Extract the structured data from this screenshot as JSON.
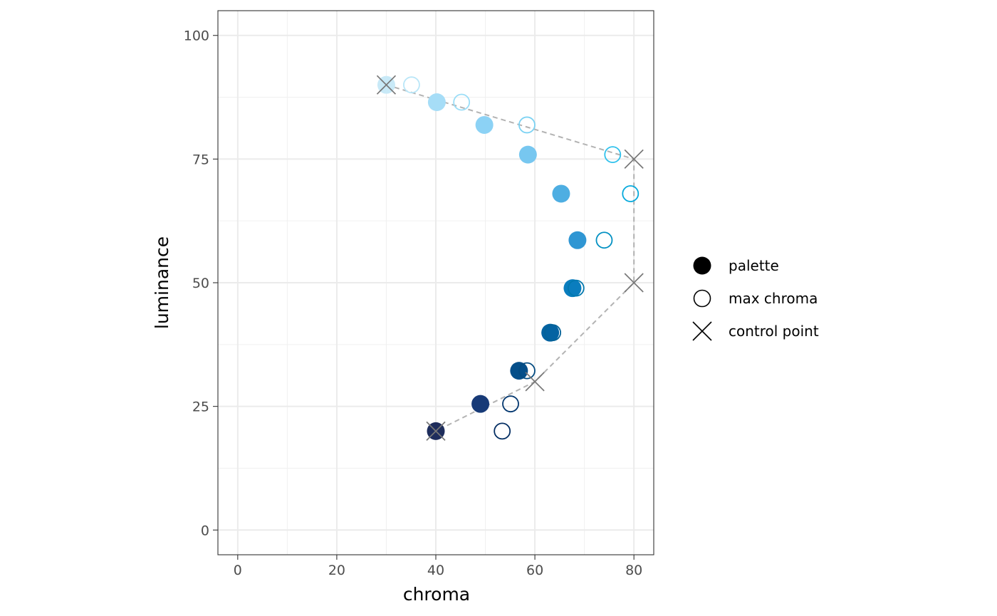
{
  "chart_data": {
    "type": "scatter",
    "xlabel": "chroma",
    "ylabel": "luminance",
    "xlim": [
      -4,
      84
    ],
    "ylim": [
      -5,
      105
    ],
    "x_ticks": [
      0,
      20,
      40,
      60,
      80
    ],
    "y_ticks": [
      0,
      25,
      50,
      75,
      100
    ],
    "x_tick_labels": [
      "0",
      "20",
      "40",
      "60",
      "80"
    ],
    "y_tick_labels": [
      "0",
      "25",
      "50",
      "75",
      "100"
    ],
    "grid": true,
    "legend_position": "right",
    "legend": [
      {
        "label": "palette",
        "shape": "filled-circle"
      },
      {
        "label": "max chroma",
        "shape": "open-circle"
      },
      {
        "label": "control point",
        "shape": "cross"
      }
    ],
    "series": [
      {
        "name": "palette",
        "points": [
          {
            "x": 30.0,
            "y": 90.0,
            "color": "#C8E9F7"
          },
          {
            "x": 40.2,
            "y": 86.5,
            "color": "#A6DDF7"
          },
          {
            "x": 49.8,
            "y": 81.9,
            "color": "#8CD2F5"
          },
          {
            "x": 58.6,
            "y": 75.9,
            "color": "#77C7F0"
          },
          {
            "x": 65.3,
            "y": 68.0,
            "color": "#4EAEE2"
          },
          {
            "x": 68.6,
            "y": 58.6,
            "color": "#2F96D3"
          },
          {
            "x": 67.6,
            "y": 48.9,
            "color": "#0A7DBE"
          },
          {
            "x": 63.1,
            "y": 39.9,
            "color": "#0463A2"
          },
          {
            "x": 56.8,
            "y": 32.2,
            "color": "#044E89"
          },
          {
            "x": 49.0,
            "y": 25.5,
            "color": "#173A77"
          },
          {
            "x": 40.0,
            "y": 20.0,
            "color": "#1E2D5C"
          }
        ]
      },
      {
        "name": "max chroma",
        "points": [
          {
            "x": 35.1,
            "y": 90.0,
            "color": "#B9E6F8"
          },
          {
            "x": 45.2,
            "y": 86.5,
            "color": "#9ADDF7"
          },
          {
            "x": 58.4,
            "y": 81.9,
            "color": "#7BD2F3"
          },
          {
            "x": 75.7,
            "y": 75.9,
            "color": "#2FC1EC"
          },
          {
            "x": 79.3,
            "y": 68.0,
            "color": "#05A9DC"
          },
          {
            "x": 74.0,
            "y": 58.6,
            "color": "#0190C2"
          },
          {
            "x": 68.3,
            "y": 48.9,
            "color": "#0178AE"
          },
          {
            "x": 63.6,
            "y": 39.9,
            "color": "#046298"
          },
          {
            "x": 58.4,
            "y": 32.2,
            "color": "#034B81"
          },
          {
            "x": 55.1,
            "y": 25.5,
            "color": "#03376F"
          },
          {
            "x": 53.4,
            "y": 20.0,
            "color": "#022D62"
          }
        ]
      },
      {
        "name": "control point",
        "color": "#777777",
        "points": [
          {
            "x": 30,
            "y": 90
          },
          {
            "x": 80,
            "y": 75
          },
          {
            "x": 80,
            "y": 50
          },
          {
            "x": 60,
            "y": 30
          },
          {
            "x": 40,
            "y": 20
          }
        ]
      }
    ],
    "dashed_path_color": "#b3b3b3"
  }
}
